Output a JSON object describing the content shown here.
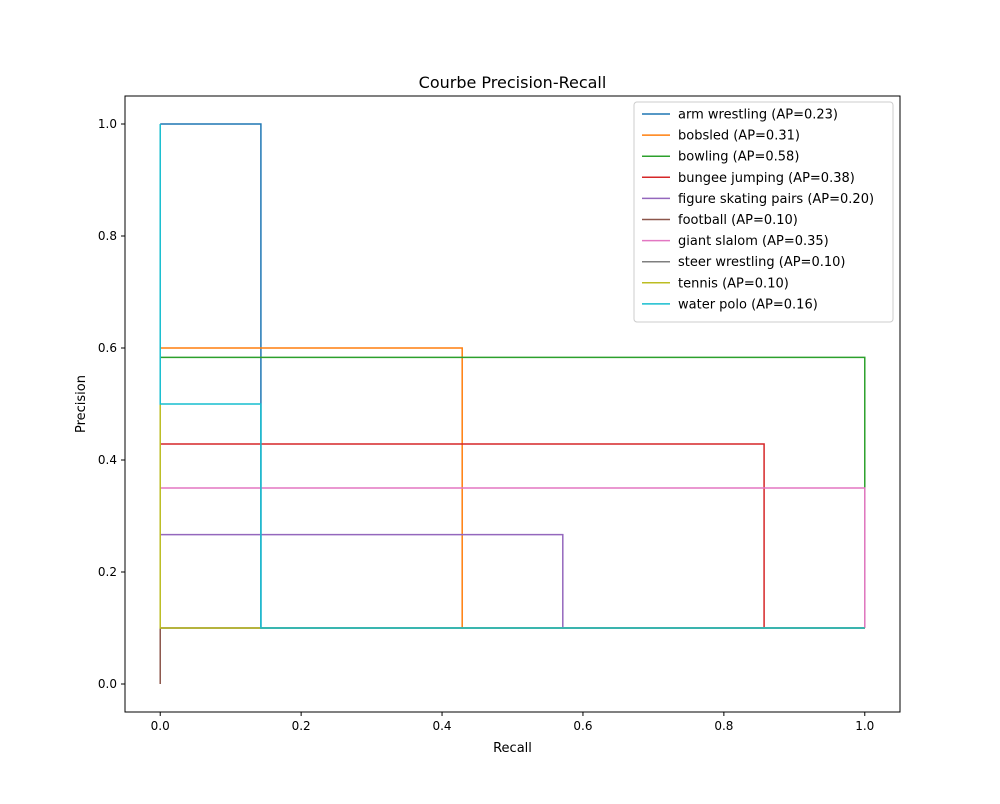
{
  "chart_data": {
    "type": "line",
    "title": "Courbe Precision-Recall",
    "xlabel": "Recall",
    "ylabel": "Precision",
    "xlim": [
      -0.05,
      1.05
    ],
    "ylim": [
      -0.05,
      1.05
    ],
    "xticks": [
      0.0,
      0.2,
      0.4,
      0.6,
      0.8,
      1.0
    ],
    "yticks": [
      0.0,
      0.2,
      0.4,
      0.6,
      0.8,
      1.0
    ],
    "xtick_labels": [
      "0.0",
      "0.2",
      "0.4",
      "0.6",
      "0.8",
      "1.0"
    ],
    "ytick_labels": [
      "0.0",
      "0.2",
      "0.4",
      "0.6",
      "0.8",
      "1.0"
    ],
    "grid": false,
    "legend_position": "top-right",
    "series": [
      {
        "name": "arm wrestling (AP=0.23)",
        "color": "#1f77b4",
        "points": [
          [
            0,
            1.0
          ],
          [
            0.1429,
            1.0
          ],
          [
            0.1429,
            0.1
          ],
          [
            1.0,
            0.1
          ]
        ]
      },
      {
        "name": "bobsled (AP=0.31)",
        "color": "#ff7f0e",
        "points": [
          [
            0,
            0.6
          ],
          [
            0.4286,
            0.6
          ],
          [
            0.4286,
            0.1
          ],
          [
            1.0,
            0.1
          ]
        ]
      },
      {
        "name": "bowling (AP=0.58)",
        "color": "#2ca02c",
        "points": [
          [
            0,
            0.5833
          ],
          [
            1.0,
            0.5833
          ],
          [
            1.0,
            0.1
          ]
        ]
      },
      {
        "name": "bungee jumping (AP=0.38)",
        "color": "#d62728",
        "points": [
          [
            0,
            0.4286
          ],
          [
            0.8571,
            0.4286
          ],
          [
            0.8571,
            0.1
          ],
          [
            1.0,
            0.1
          ]
        ]
      },
      {
        "name": "figure skating pairs (AP=0.20)",
        "color": "#9467bd",
        "points": [
          [
            0,
            0.2667
          ],
          [
            0.5714,
            0.2667
          ],
          [
            0.5714,
            0.1
          ],
          [
            1.0,
            0.1
          ]
        ]
      },
      {
        "name": "football (AP=0.10)",
        "color": "#8c564b",
        "points": [
          [
            0,
            0.0
          ],
          [
            0,
            0.1
          ],
          [
            1.0,
            0.1
          ]
        ]
      },
      {
        "name": "giant slalom (AP=0.35)",
        "color": "#e377c2",
        "points": [
          [
            0,
            0.35
          ],
          [
            1.0,
            0.35
          ],
          [
            1.0,
            0.1
          ]
        ]
      },
      {
        "name": "steer wrestling (AP=0.10)",
        "color": "#7f7f7f",
        "points": [
          [
            0,
            0.1
          ],
          [
            1.0,
            0.1
          ]
        ]
      },
      {
        "name": "tennis (AP=0.10)",
        "color": "#bcbd22",
        "points": [
          [
            0,
            0.5
          ],
          [
            0,
            0.1
          ],
          [
            1.0,
            0.1
          ]
        ]
      },
      {
        "name": "water polo (AP=0.16)",
        "color": "#17becf",
        "points": [
          [
            0,
            1.0
          ],
          [
            0,
            0.5
          ],
          [
            0.1429,
            0.5
          ],
          [
            0.1429,
            0.1
          ],
          [
            1.0,
            0.1
          ]
        ]
      }
    ]
  }
}
